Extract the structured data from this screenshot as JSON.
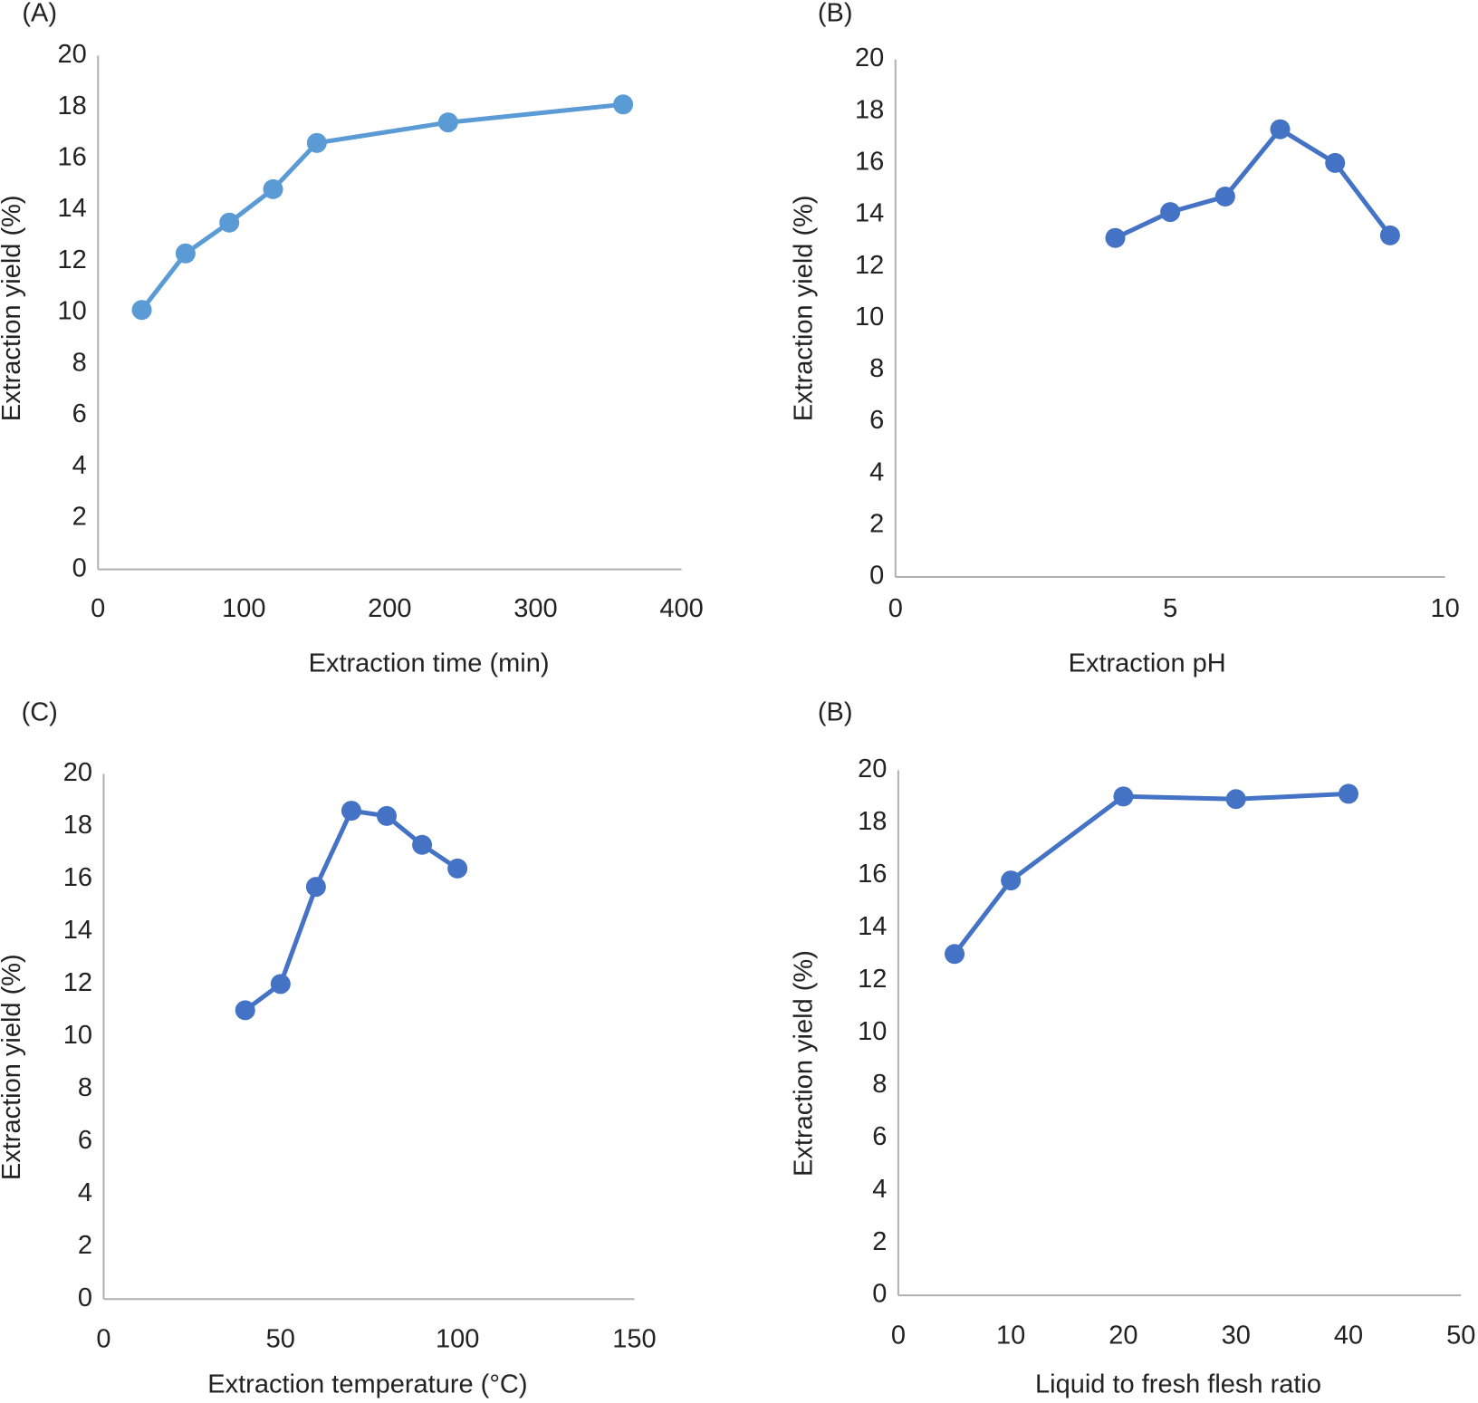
{
  "chart_data": [
    {
      "type": "line",
      "title": "(A)",
      "x_label": "Extraction time (min)",
      "y_label": "Extraction yield (%)",
      "x": [
        30,
        60,
        90,
        120,
        150,
        240,
        360
      ],
      "values": [
        10.1,
        12.3,
        13.5,
        14.8,
        16.6,
        17.4,
        18.1
      ],
      "color": "#5b9bd5",
      "xlim": [
        0,
        400
      ],
      "xticks": [
        0,
        100,
        200,
        300,
        400
      ],
      "ylim": [
        0,
        20
      ],
      "yticks": [
        0,
        2,
        4,
        6,
        8,
        10,
        12,
        14,
        16,
        18,
        20
      ]
    },
    {
      "type": "line",
      "title": "(B)",
      "x_label": "Extraction pH",
      "y_label": "Extraction yield (%)",
      "x": [
        4,
        5,
        6,
        7,
        8,
        9
      ],
      "values": [
        13.1,
        14.1,
        14.7,
        17.3,
        16.0,
        13.2
      ],
      "color": "#4472c4",
      "xlim": [
        0,
        10
      ],
      "xticks": [
        0,
        5,
        10
      ],
      "ylim": [
        0,
        20
      ],
      "yticks": [
        0,
        2,
        4,
        6,
        8,
        10,
        12,
        14,
        16,
        18,
        20
      ]
    },
    {
      "type": "line",
      "title": "(C)",
      "x_label": "Extraction temperature (°C)",
      "y_label": "Extraction yield (%)",
      "x": [
        40,
        50,
        60,
        70,
        80,
        90,
        100
      ],
      "values": [
        11.0,
        12.0,
        15.7,
        18.6,
        18.4,
        17.3,
        16.4
      ],
      "color": "#4472c4",
      "xlim": [
        0,
        150
      ],
      "xticks": [
        0,
        50,
        100,
        150
      ],
      "ylim": [
        0,
        20
      ],
      "yticks": [
        0,
        2,
        4,
        6,
        8,
        10,
        12,
        14,
        16,
        18,
        20
      ]
    },
    {
      "type": "line",
      "title": "(B)",
      "x_label": "Liquid to fresh flesh ratio",
      "y_label": "Extraction yield (%)",
      "x": [
        5,
        10,
        20,
        30,
        40
      ],
      "values": [
        13.0,
        15.8,
        19.0,
        18.9,
        19.1
      ],
      "color": "#4472c4",
      "xlim": [
        0,
        50
      ],
      "xticks": [
        0,
        10,
        20,
        30,
        40,
        50
      ],
      "ylim": [
        0,
        20
      ],
      "yticks": [
        0,
        2,
        4,
        6,
        8,
        10,
        12,
        14,
        16,
        18,
        20
      ]
    }
  ]
}
